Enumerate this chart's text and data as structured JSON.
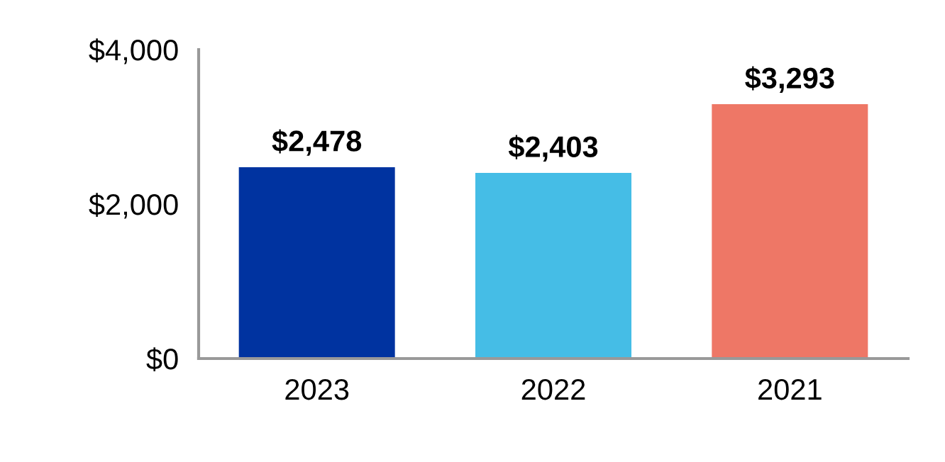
{
  "chart_data": {
    "type": "bar",
    "categories": [
      "2023",
      "2022",
      "2021"
    ],
    "values": [
      2478,
      2403,
      3293
    ],
    "colors": [
      "#0033a0",
      "#45bde6",
      "#ee7766"
    ],
    "value_labels": [
      "$2,478",
      "$2,403",
      "$3,293"
    ],
    "ylim": [
      0,
      4000
    ],
    "yticks": [
      {
        "value": 0,
        "label": "$0"
      },
      {
        "value": 2000,
        "label": "$2,000"
      },
      {
        "value": 4000,
        "label": "$4,000"
      }
    ],
    "grid": false
  }
}
